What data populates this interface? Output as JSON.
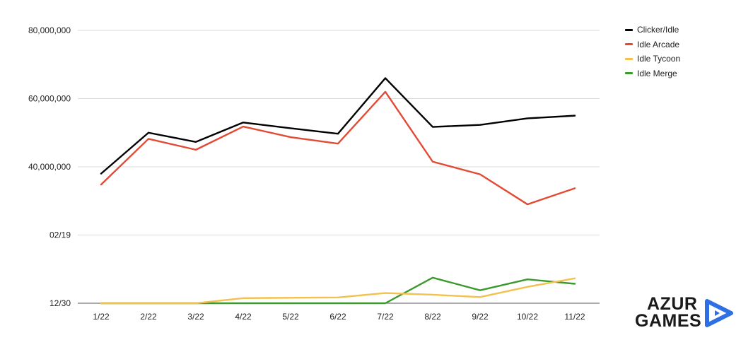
{
  "chart_data": {
    "type": "line",
    "categories": [
      "1/22",
      "2/22",
      "3/22",
      "4/22",
      "5/22",
      "6/22",
      "7/22",
      "8/22",
      "9/22",
      "10/22",
      "11/22"
    ],
    "y_ticks": [
      "12/30",
      "02/19",
      "40,000,000",
      "60,000,000",
      "80,000,000"
    ],
    "ylim": [
      0,
      80000000
    ],
    "grid": true,
    "legend_position": "top-right",
    "series": [
      {
        "name": "Clicker/Idle",
        "color": "#000000",
        "values": [
          38000000,
          50000000,
          47300000,
          53000000,
          51300000,
          49700000,
          66000000,
          51700000,
          52300000,
          54200000,
          55000000
        ]
      },
      {
        "name": "Idle Arcade",
        "color": "#e24a33",
        "values": [
          34800000,
          48200000,
          45000000,
          51800000,
          48700000,
          46800000,
          62000000,
          41500000,
          37800000,
          29000000,
          33700000
        ]
      },
      {
        "name": "Idle Tycoon",
        "color": "#f2c14e",
        "values": [
          0,
          0,
          0,
          1500000,
          1600000,
          1700000,
          3000000,
          2500000,
          1800000,
          4800000,
          7300000
        ]
      },
      {
        "name": "Idle Merge",
        "color": "#3b9a2e",
        "values": [
          0,
          0,
          0,
          0,
          0,
          0,
          0,
          7500000,
          3800000,
          7000000,
          5700000
        ]
      }
    ]
  },
  "logo": {
    "line1": "AZUR",
    "line2": "GAMES",
    "accent": "#2f6fe4"
  }
}
